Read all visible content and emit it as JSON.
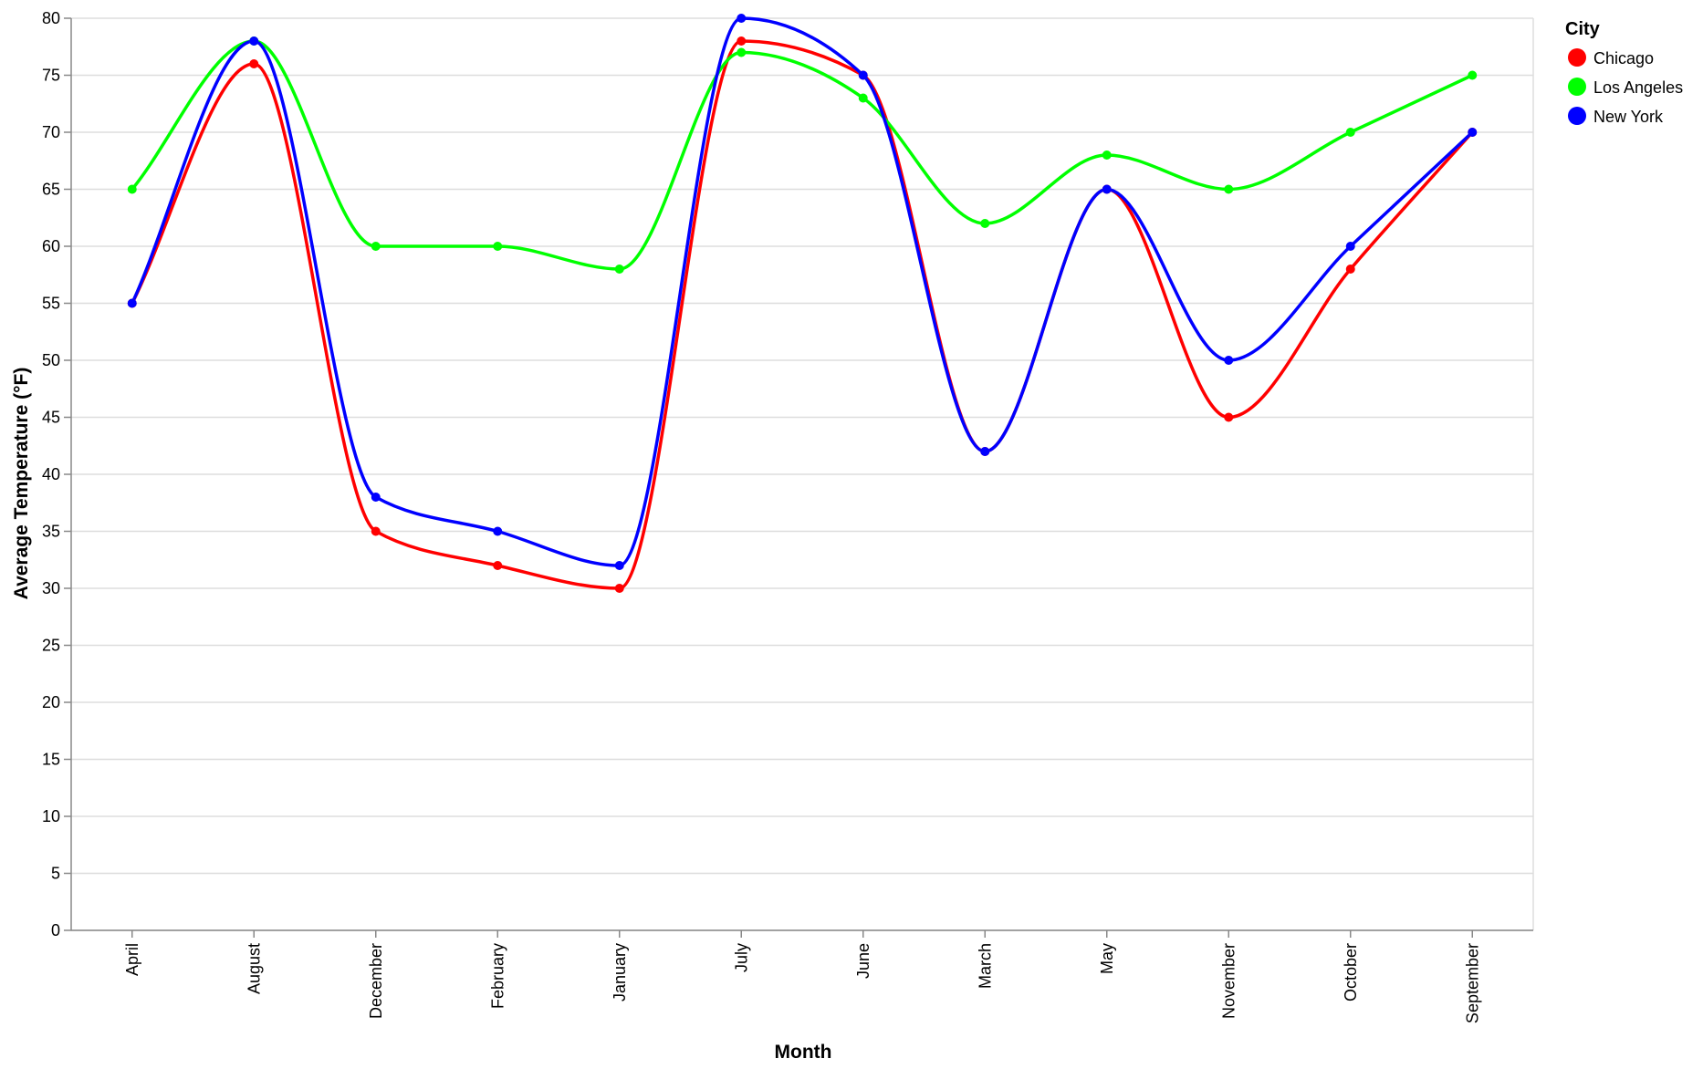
{
  "chart_data": {
    "type": "line",
    "xlabel": "Month",
    "ylabel": "Average Temperature (°F)",
    "categories": [
      "April",
      "August",
      "December",
      "February",
      "January",
      "July",
      "June",
      "March",
      "May",
      "November",
      "October",
      "September"
    ],
    "ylim": [
      0,
      80
    ],
    "yticks": [
      0,
      5,
      10,
      15,
      20,
      25,
      30,
      35,
      40,
      45,
      50,
      55,
      60,
      65,
      70,
      75,
      80
    ],
    "grid": true,
    "interpolation": "monotone",
    "legend": {
      "title": "City",
      "placement": "top-right"
    },
    "series": [
      {
        "name": "Chicago",
        "color": "#ff0000",
        "values": [
          55,
          76,
          35,
          32,
          30,
          78,
          75,
          42,
          65,
          45,
          58,
          70
        ]
      },
      {
        "name": "Los Angeles",
        "color": "#00ff00",
        "values": [
          65,
          78,
          60,
          60,
          58,
          77,
          73,
          62,
          68,
          65,
          70,
          75
        ]
      },
      {
        "name": "New York",
        "color": "#0000ff",
        "values": [
          55,
          78,
          38,
          35,
          32,
          80,
          75,
          42,
          65,
          50,
          60,
          70
        ]
      }
    ]
  }
}
